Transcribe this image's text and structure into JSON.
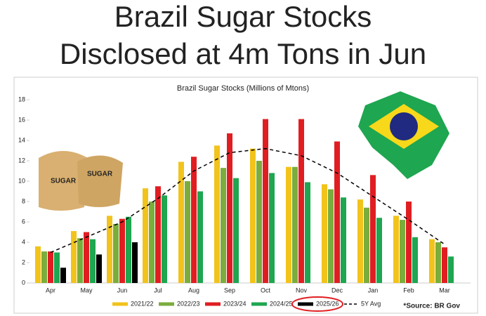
{
  "headline": [
    "Brazil Sugar Stocks",
    "Disclosed at 4m Tons in Jun"
  ],
  "source": "*Source: BR Gov",
  "chart_data": {
    "type": "bar",
    "title": "Brazil Sugar Stocks (Millions of Mtons)",
    "categories": [
      "Apr",
      "May",
      "Jun",
      "Jul",
      "Aug",
      "Sep",
      "Oct",
      "Nov",
      "Dec",
      "Jan",
      "Feb",
      "Mar"
    ],
    "series": [
      {
        "name": "2021/22",
        "color": "#f2c31b",
        "values": [
          3.6,
          5.1,
          6.6,
          9.3,
          11.9,
          13.5,
          13.2,
          11.4,
          9.7,
          8.2,
          6.6,
          4.3
        ]
      },
      {
        "name": "2022/23",
        "color": "#7aad3c",
        "values": [
          3.1,
          4.4,
          5.8,
          8.0,
          10.0,
          11.3,
          12.0,
          11.4,
          9.2,
          7.4,
          6.2,
          4.0
        ]
      },
      {
        "name": "2023/24",
        "color": "#e01e22",
        "values": [
          3.1,
          5.0,
          6.3,
          9.5,
          12.4,
          14.7,
          16.1,
          16.1,
          13.9,
          10.6,
          8.0,
          3.5
        ]
      },
      {
        "name": "2024/25",
        "color": "#1ea650",
        "values": [
          3.0,
          4.3,
          6.5,
          8.6,
          9.0,
          10.3,
          10.8,
          9.9,
          8.4,
          6.4,
          4.5,
          2.6
        ]
      },
      {
        "name": "2025/26",
        "color": "#000000",
        "values": [
          1.5,
          2.8,
          4.0,
          null,
          null,
          null,
          null,
          null,
          null,
          null,
          null,
          null
        ]
      }
    ],
    "line_series": {
      "name": "5Y Avg",
      "color": "#000000",
      "dashed": true,
      "values": [
        3.0,
        4.5,
        6.0,
        8.3,
        11.0,
        12.8,
        13.2,
        12.5,
        10.8,
        8.5,
        6.2,
        3.8
      ]
    },
    "legend_highlight_index": 4,
    "ylim": [
      0,
      18
    ],
    "yticks": [
      0,
      2,
      4,
      6,
      8,
      10,
      12,
      14,
      16,
      18
    ],
    "grid": false
  }
}
